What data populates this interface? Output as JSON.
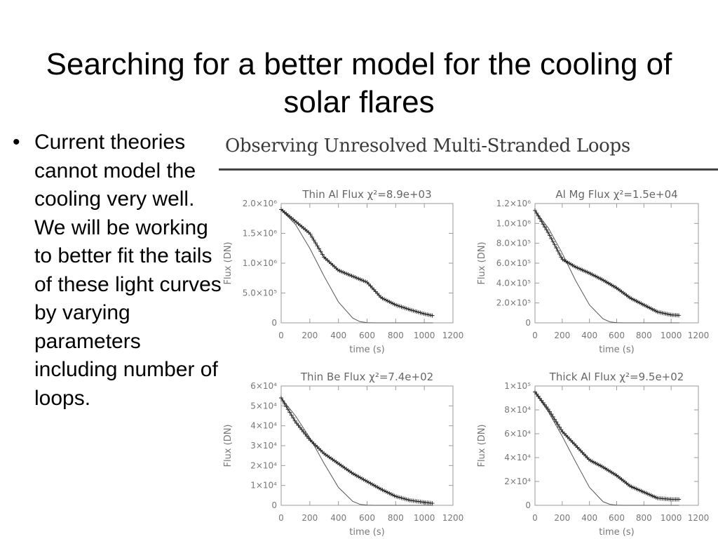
{
  "slide": {
    "title": "Searching for a better model for the cooling of solar flares",
    "bullet": "Current theories cannot model the cooling very well.  We will be working to better fit the tails of these light curves by varying parameters including number of loops."
  },
  "figure": {
    "heading": "Observing Unresolved Multi-Stranded Loops"
  },
  "chart_data": [
    {
      "type": "line",
      "title": "Thin Al Flux χ²=8.9e+03",
      "xlabel": "time (s)",
      "ylabel": "Flux (DN)",
      "xlim": [
        0,
        1200
      ],
      "ylim": [
        0,
        2000000
      ],
      "xticks": [
        "0",
        "200",
        "400",
        "600",
        "800",
        "1000",
        "1200"
      ],
      "yticks": [
        {
          "value": 0,
          "label": "0"
        },
        {
          "value": 500000,
          "label": "5.0×10⁵"
        },
        {
          "value": 1000000,
          "label": "1.0×10⁶"
        },
        {
          "value": 1500000,
          "label": "1.5×10⁶"
        },
        {
          "value": 2000000,
          "label": "2.0×10⁶"
        }
      ],
      "series": [
        {
          "marker": "plus",
          "x": [
            0,
            100,
            200,
            300,
            400,
            500,
            600,
            700,
            800,
            900,
            1000,
            1060
          ],
          "y": [
            1900000,
            1700000,
            1500000,
            1100000,
            880000,
            780000,
            680000,
            420000,
            300000,
            220000,
            150000,
            120000
          ]
        },
        {
          "marker": "none",
          "x": [
            0,
            100,
            200,
            300,
            400,
            500,
            550,
            600,
            650,
            1060
          ],
          "y": [
            1900000,
            1650000,
            1250000,
            780000,
            350000,
            80000,
            20000,
            3000,
            0,
            0
          ]
        }
      ]
    },
    {
      "type": "line",
      "title": "Al Mg Flux χ²=1.5e+04",
      "xlabel": "time (s)",
      "ylabel": "Flux (DN)",
      "xlim": [
        0,
        1200
      ],
      "ylim": [
        0,
        1200000
      ],
      "xticks": [
        "0",
        "200",
        "400",
        "600",
        "800",
        "1000",
        "1200"
      ],
      "yticks": [
        {
          "value": 0,
          "label": "0"
        },
        {
          "value": 200000,
          "label": "2.0×10⁵"
        },
        {
          "value": 400000,
          "label": "4.0×10⁵"
        },
        {
          "value": 600000,
          "label": "6.0×10⁵"
        },
        {
          "value": 800000,
          "label": "8.0×10⁵"
        },
        {
          "value": 1000000,
          "label": "1.0×10⁶"
        },
        {
          "value": 1200000,
          "label": "1.2×10⁶"
        }
      ],
      "series": [
        {
          "marker": "plus",
          "x": [
            0,
            100,
            200,
            300,
            400,
            500,
            600,
            700,
            800,
            900,
            1000,
            1060
          ],
          "y": [
            1130000,
            900000,
            640000,
            560000,
            500000,
            430000,
            350000,
            250000,
            180000,
            110000,
            80000,
            75000
          ]
        },
        {
          "marker": "none",
          "x": [
            0,
            100,
            200,
            300,
            400,
            500,
            550,
            600,
            650,
            1060
          ],
          "y": [
            1130000,
            950000,
            700000,
            420000,
            180000,
            40000,
            10000,
            2000,
            0,
            0
          ]
        }
      ]
    },
    {
      "type": "line",
      "title": "Thin Be Flux χ²=7.4e+02",
      "xlabel": "time (s)",
      "ylabel": "Flux (DN)",
      "xlim": [
        0,
        1200
      ],
      "ylim": [
        0,
        60000
      ],
      "xticks": [
        "0",
        "200",
        "400",
        "600",
        "800",
        "1000",
        "1200"
      ],
      "yticks": [
        {
          "value": 0,
          "label": "0"
        },
        {
          "value": 10000,
          "label": "1×10⁴"
        },
        {
          "value": 20000,
          "label": "2×10⁴"
        },
        {
          "value": 30000,
          "label": "3×10⁴"
        },
        {
          "value": 40000,
          "label": "4×10⁴"
        },
        {
          "value": 50000,
          "label": "5×10⁴"
        },
        {
          "value": 60000,
          "label": "6×10⁴"
        }
      ],
      "series": [
        {
          "marker": "plus",
          "x": [
            0,
            100,
            200,
            300,
            400,
            500,
            600,
            700,
            800,
            900,
            1000,
            1060
          ],
          "y": [
            54000,
            42000,
            33000,
            26000,
            21000,
            16000,
            12000,
            8000,
            4500,
            2500,
            1500,
            1000
          ]
        },
        {
          "marker": "none",
          "x": [
            0,
            100,
            200,
            300,
            400,
            500,
            550,
            600,
            650,
            1060
          ],
          "y": [
            54000,
            45000,
            34000,
            21000,
            9000,
            2000,
            500,
            100,
            0,
            0
          ]
        }
      ]
    },
    {
      "type": "line",
      "title": "Thick Al Flux χ²=9.5e+02",
      "xlabel": "time (s)",
      "ylabel": "Flux (DN)",
      "xlim": [
        0,
        1200
      ],
      "ylim": [
        0,
        100000
      ],
      "xticks": [
        "0",
        "200",
        "400",
        "600",
        "800",
        "1000",
        "1200"
      ],
      "yticks": [
        {
          "value": 0,
          "label": "0"
        },
        {
          "value": 20000,
          "label": "2×10⁴"
        },
        {
          "value": 40000,
          "label": "4×10⁴"
        },
        {
          "value": 60000,
          "label": "6×10⁴"
        },
        {
          "value": 80000,
          "label": "8×10⁴"
        },
        {
          "value": 100000,
          "label": "1×10⁵"
        }
      ],
      "series": [
        {
          "marker": "plus",
          "x": [
            0,
            100,
            200,
            300,
            400,
            500,
            600,
            700,
            800,
            900,
            1000,
            1060
          ],
          "y": [
            95000,
            80000,
            62000,
            50000,
            38000,
            32000,
            25000,
            16000,
            11000,
            6000,
            5000,
            5000
          ]
        },
        {
          "marker": "none",
          "x": [
            0,
            100,
            200,
            300,
            400,
            500,
            550,
            600,
            650,
            1060
          ],
          "y": [
            95000,
            78000,
            58000,
            36000,
            15000,
            3000,
            800,
            100,
            0,
            0
          ]
        }
      ]
    }
  ]
}
